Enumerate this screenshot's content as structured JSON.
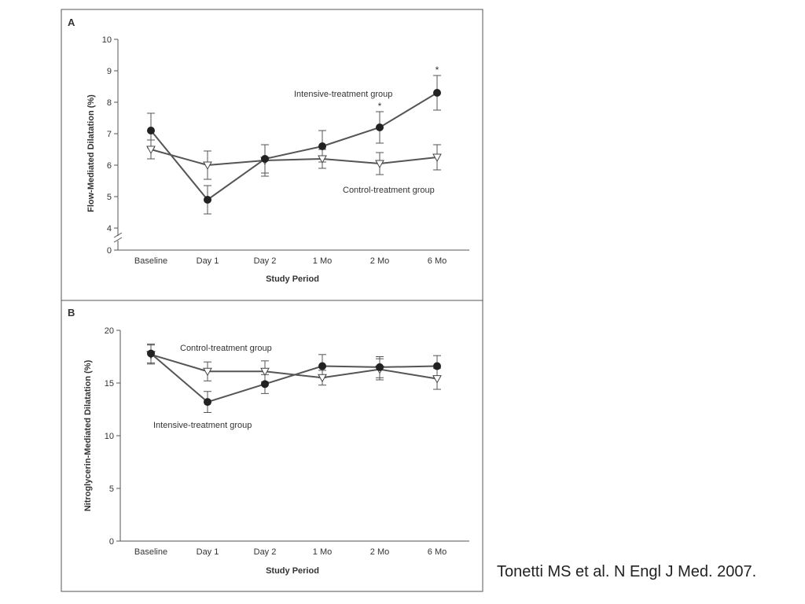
{
  "citation": "Tonetti MS et al. N Engl J Med. 2007.",
  "colors": {
    "frame": "#555555",
    "line": "#555555",
    "text": "#333333",
    "intensive_marker": "#222222",
    "control_marker": "#ffffff"
  },
  "chart_data": [
    {
      "type": "line",
      "panel": "A",
      "xlabel": "Study Period",
      "ylabel": "Flow-Mediated Dilatation (%)",
      "categories": [
        "Baseline",
        "Day 1",
        "Day 2",
        "1 Mo",
        "2 Mo",
        "6 Mo"
      ],
      "ylim": [
        4,
        10
      ],
      "yticks": [
        4,
        5,
        6,
        7,
        8,
        9,
        10
      ],
      "y_zero_label": "0",
      "axis_break": true,
      "grid": false,
      "series": [
        {
          "name": "Intensive-treatment group",
          "marker": "filled-circle",
          "values": [
            7.1,
            4.9,
            6.2,
            6.6,
            7.2,
            8.3
          ],
          "error": [
            0.55,
            0.45,
            0.45,
            0.5,
            0.5,
            0.55
          ],
          "significant": [
            false,
            false,
            false,
            false,
            true,
            true
          ],
          "significance_symbol": "*"
        },
        {
          "name": "Control-treatment group",
          "marker": "open-triangle",
          "values": [
            6.5,
            6.0,
            6.15,
            6.2,
            6.05,
            6.25
          ],
          "error": [
            0.3,
            0.45,
            0.5,
            0.3,
            0.35,
            0.4
          ]
        }
      ]
    },
    {
      "type": "line",
      "panel": "B",
      "xlabel": "Study Period",
      "ylabel": "Nitroglycerin-Mediated Dilatation (%)",
      "categories": [
        "Baseline",
        "Day 1",
        "Day 2",
        "1 Mo",
        "2 Mo",
        "6 Mo"
      ],
      "ylim": [
        0,
        20
      ],
      "yticks": [
        0,
        5,
        10,
        15,
        20
      ],
      "grid": false,
      "series": [
        {
          "name": "Intensive-treatment group",
          "marker": "filled-circle",
          "values": [
            17.8,
            13.2,
            14.9,
            16.6,
            16.5,
            16.6
          ],
          "error": [
            0.9,
            1.0,
            0.9,
            1.1,
            1.0,
            1.0
          ]
        },
        {
          "name": "Control-treatment group",
          "marker": "open-triangle",
          "values": [
            17.7,
            16.1,
            16.1,
            15.5,
            16.3,
            15.4
          ],
          "error": [
            0.9,
            0.9,
            1.0,
            0.7,
            1.0,
            1.0
          ]
        }
      ]
    }
  ]
}
